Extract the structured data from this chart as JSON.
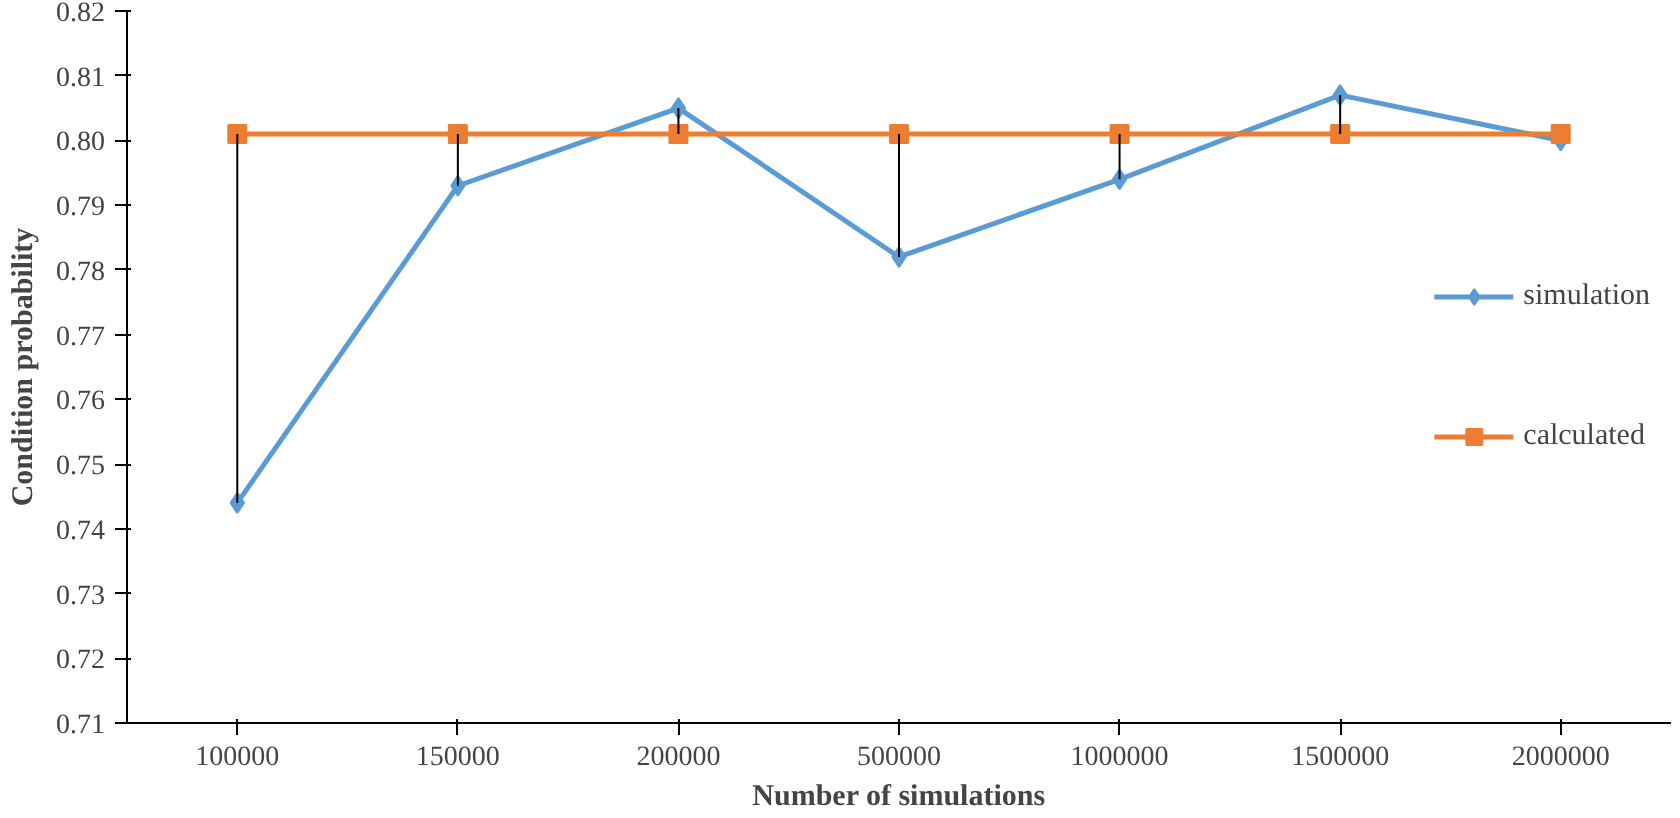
{
  "chart_data": {
    "type": "line",
    "xlabel": "Number of simulations",
    "ylabel": "Condition probability",
    "categories": [
      "100000",
      "150000",
      "200000",
      "500000",
      "1000000",
      "1500000",
      "2000000"
    ],
    "series": [
      {
        "name": "simulation",
        "color": "#5b9bd5",
        "marker": "diamond",
        "values": [
          0.744,
          0.793,
          0.805,
          0.782,
          0.794,
          0.807,
          0.8
        ],
        "errors": [
          [
            0.744,
            0.801
          ],
          [
            0.793,
            0.801
          ],
          [
            0.801,
            0.805
          ],
          [
            0.782,
            0.801
          ],
          [
            0.794,
            0.801
          ],
          [
            0.801,
            0.807
          ],
          null
        ]
      },
      {
        "name": "calculated",
        "color": "#ed7d31",
        "marker": "square",
        "values": [
          0.801,
          0.801,
          0.801,
          0.801,
          0.801,
          0.801,
          0.801
        ]
      }
    ],
    "ylim": [
      0.71,
      0.82
    ],
    "yticks": [
      0.71,
      0.72,
      0.73,
      0.74,
      0.75,
      0.76,
      0.77,
      0.78,
      0.79,
      {
        "value": 0.8,
        "label": "0.80"
      },
      0.81,
      0.82
    ],
    "grid": false,
    "legend": "right"
  }
}
